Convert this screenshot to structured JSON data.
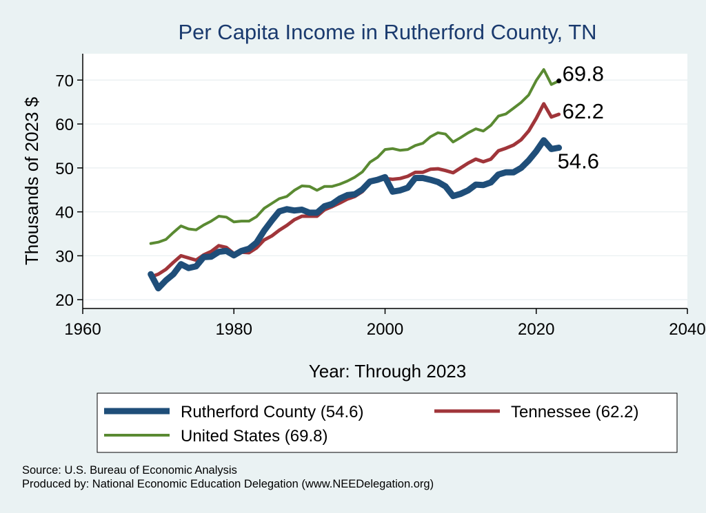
{
  "chart_data": {
    "type": "line",
    "title": "Per Capita Income in Rutherford County, TN",
    "xlabel": "Year: Through 2023",
    "ylabel": "Thousands of 2023 $",
    "xlim": [
      1960,
      2040
    ],
    "ylim": [
      18,
      76
    ],
    "xticks": [
      1960,
      1980,
      2000,
      2020,
      2040
    ],
    "yticks": [
      20,
      30,
      40,
      50,
      60,
      70
    ],
    "grid": true,
    "legend_position": "bottom",
    "series": [
      {
        "name": "United States",
        "legend": "United States (69.8)",
        "color": "#5a8a32",
        "end_label": "69.8",
        "x": [
          1969,
          1970,
          1971,
          1972,
          1973,
          1974,
          1975,
          1976,
          1977,
          1978,
          1979,
          1980,
          1981,
          1982,
          1983,
          1984,
          1985,
          1986,
          1987,
          1988,
          1989,
          1990,
          1991,
          1992,
          1993,
          1994,
          1995,
          1996,
          1997,
          1998,
          1999,
          2000,
          2001,
          2002,
          2003,
          2004,
          2005,
          2006,
          2007,
          2008,
          2009,
          2010,
          2011,
          2012,
          2013,
          2014,
          2015,
          2016,
          2017,
          2018,
          2019,
          2020,
          2021,
          2022,
          2023
        ],
        "values": [
          32.8,
          33.1,
          33.7,
          35.3,
          36.8,
          36.1,
          35.9,
          37.0,
          37.9,
          39.0,
          38.8,
          37.7,
          37.9,
          37.9,
          38.9,
          40.8,
          41.9,
          43.0,
          43.5,
          44.9,
          45.9,
          45.8,
          44.9,
          45.8,
          45.8,
          46.3,
          47.0,
          47.9,
          49.1,
          51.3,
          52.4,
          54.2,
          54.4,
          54.0,
          54.2,
          55.1,
          55.6,
          57.1,
          58.0,
          57.7,
          55.9,
          56.9,
          58.0,
          58.9,
          58.4,
          59.7,
          61.8,
          62.3,
          63.6,
          64.9,
          66.6,
          69.9,
          72.4,
          69.0,
          69.8
        ]
      },
      {
        "name": "Tennessee",
        "legend": "Tennessee (62.2)",
        "color": "#a0353a",
        "end_label": "62.2",
        "x": [
          1969,
          1970,
          1971,
          1972,
          1973,
          1974,
          1975,
          1976,
          1977,
          1978,
          1979,
          1980,
          1981,
          1982,
          1983,
          1984,
          1985,
          1986,
          1987,
          1988,
          1989,
          1990,
          1991,
          1992,
          1993,
          1994,
          1995,
          1996,
          1997,
          1998,
          1999,
          2000,
          2001,
          2002,
          2003,
          2004,
          2005,
          2006,
          2007,
          2008,
          2009,
          2010,
          2011,
          2012,
          2013,
          2014,
          2015,
          2016,
          2017,
          2018,
          2019,
          2020,
          2021,
          2022,
          2023
        ],
        "values": [
          25.2,
          25.8,
          26.9,
          28.5,
          30.0,
          29.5,
          29.0,
          30.2,
          31.0,
          32.3,
          31.9,
          30.5,
          30.8,
          30.7,
          31.8,
          33.6,
          34.5,
          35.8,
          36.9,
          38.2,
          39.0,
          39.0,
          39.0,
          40.5,
          41.2,
          42.0,
          42.9,
          43.5,
          44.6,
          46.6,
          47.2,
          47.6,
          47.4,
          47.6,
          48.1,
          49.0,
          49.0,
          49.7,
          49.8,
          49.4,
          48.9,
          50.0,
          51.1,
          52.0,
          51.4,
          52.0,
          53.9,
          54.5,
          55.2,
          56.4,
          58.4,
          61.3,
          64.6,
          61.6,
          62.2
        ]
      },
      {
        "name": "Rutherford County",
        "legend": "Rutherford County (54.6)",
        "color": "#1f4e79",
        "end_label": "54.6",
        "x": [
          1969,
          1970,
          1971,
          1972,
          1973,
          1974,
          1975,
          1976,
          1977,
          1978,
          1979,
          1980,
          1981,
          1982,
          1983,
          1984,
          1985,
          1986,
          1987,
          1988,
          1989,
          1990,
          1991,
          1992,
          1993,
          1994,
          1995,
          1996,
          1997,
          1998,
          1999,
          2000,
          2001,
          2002,
          2003,
          2004,
          2005,
          2006,
          2007,
          2008,
          2009,
          2010,
          2011,
          2012,
          2013,
          2014,
          2015,
          2016,
          2017,
          2018,
          2019,
          2020,
          2021,
          2022,
          2023
        ],
        "values": [
          25.8,
          22.6,
          24.4,
          25.8,
          28.1,
          27.2,
          27.6,
          29.7,
          29.8,
          30.9,
          31.1,
          30.1,
          31.1,
          31.6,
          33.0,
          35.7,
          38.0,
          40.1,
          40.6,
          40.3,
          40.5,
          39.8,
          39.8,
          41.3,
          41.8,
          43.0,
          43.8,
          44.0,
          45.1,
          46.9,
          47.3,
          47.9,
          44.6,
          44.9,
          45.5,
          47.7,
          47.7,
          47.3,
          46.8,
          45.8,
          43.6,
          44.1,
          44.9,
          46.2,
          46.1,
          46.7,
          48.5,
          49.0,
          49.0,
          50.0,
          51.7,
          53.8,
          56.3,
          54.3,
          54.6
        ]
      }
    ]
  },
  "source": "Source: U.S. Bureau of Economic Analysis",
  "produced_by": "Produced by: National Economic Education Delegation (www.NEEDelegation.org)"
}
